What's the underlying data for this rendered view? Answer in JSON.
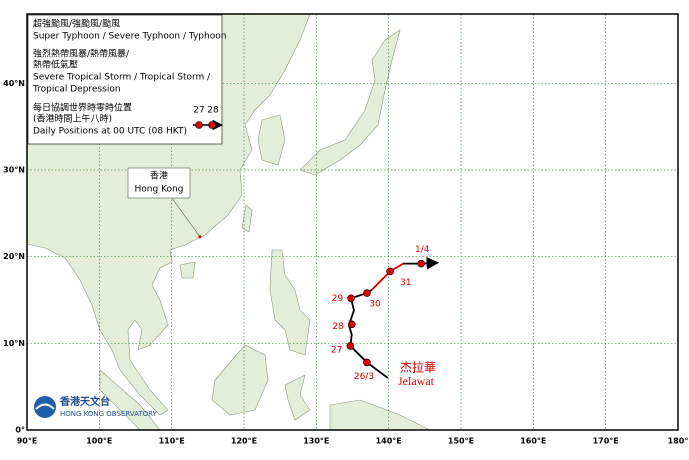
{
  "map": {
    "type": "track-map",
    "xlim": [
      90,
      180
    ],
    "ylim": [
      0,
      48
    ],
    "grid": true,
    "xticks": [
      {
        "value": 90,
        "label": "90°E"
      },
      {
        "value": 100,
        "label": "100°E"
      },
      {
        "value": 110,
        "label": "110°E"
      },
      {
        "value": 120,
        "label": "120°E"
      },
      {
        "value": 130,
        "label": "130°E"
      },
      {
        "value": 140,
        "label": "140°E"
      },
      {
        "value": 150,
        "label": "150°E"
      },
      {
        "value": 160,
        "label": "160°E"
      },
      {
        "value": 170,
        "label": "170°E"
      },
      {
        "value": 180,
        "label": "180°"
      }
    ],
    "yticks": [
      {
        "value": 0,
        "label": "0°"
      },
      {
        "value": 10,
        "label": "10°N"
      },
      {
        "value": 20,
        "label": "20°N"
      },
      {
        "value": 30,
        "label": "30°N"
      },
      {
        "value": 40,
        "label": "40°N"
      }
    ],
    "series": [
      {
        "label_lines": [
          "超強颱風/強颱風/颱風",
          "Super Typhoon / Severe Typhoon / Typhoon"
        ],
        "color": "#e00000",
        "lon": [
          137.7,
          140.2,
          142.0
        ],
        "lat": [
          16.2,
          18.3,
          19.2
        ]
      },
      {
        "label_lines": [
          "強烈熱帶風暴/熱帶風暴/",
          "熱帶低氣壓",
          "Severe Tropical Storm / Tropical Storm /",
          "Tropical Depression"
        ],
        "color": "#000000",
        "lon": [
          139.9,
          137.0,
          134.7,
          134.9,
          134.5,
          135.2,
          134.8,
          137.0,
          137.7,
          null,
          142.0,
          144.5,
          146.8
        ],
        "lat": [
          6.0,
          7.8,
          9.7,
          11.0,
          12.1,
          13.8,
          15.2,
          15.8,
          16.2,
          null,
          19.2,
          19.2,
          19.3
        ]
      }
    ],
    "positions": {
      "label_lines": [
        "每日協調世界時零時位置",
        "(香港時間上午八時)",
        "Daily Positions at 00 UTC (08 HKT)"
      ],
      "sample_labels": [
        "27",
        "28"
      ],
      "color": "#e00000",
      "labels": [
        "26/3",
        "27",
        "28",
        "29",
        "30",
        "31",
        "1/4"
      ],
      "lon": [
        137.0,
        134.7,
        134.9,
        134.8,
        137.0,
        140.2,
        144.5
      ],
      "lat": [
        7.8,
        9.7,
        12.2,
        15.2,
        15.8,
        18.3,
        19.2
      ]
    },
    "storm": {
      "name_zh": "杰拉華",
      "name": "Jelawat"
    },
    "place": {
      "name_zh": "香港",
      "name": "Hong Kong",
      "lon": 113.9,
      "lat": 22.3
    },
    "logo": {
      "name_zh": "香港天文台",
      "name": "HONG KONG OBSERVATORY"
    }
  }
}
